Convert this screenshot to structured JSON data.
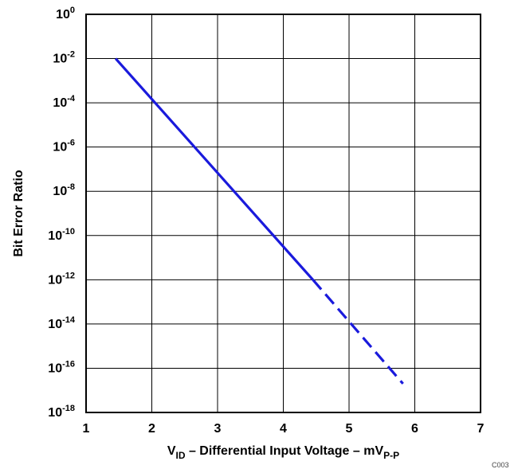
{
  "chart_data": {
    "type": "line",
    "scale": {
      "x": "linear",
      "y": "log10"
    },
    "xlim": [
      1,
      7
    ],
    "ylim": [
      1e-18,
      1
    ],
    "grid": true,
    "x_ticks": [
      "1",
      "2",
      "3",
      "4",
      "5",
      "6",
      "7"
    ],
    "y_ticks": [
      {
        "base": "10",
        "exp": "0"
      },
      {
        "base": "10",
        "exp": "-2"
      },
      {
        "base": "10",
        "exp": "-4"
      },
      {
        "base": "10",
        "exp": "-6"
      },
      {
        "base": "10",
        "exp": "-8"
      },
      {
        "base": "10",
        "exp": "-10"
      },
      {
        "base": "10",
        "exp": "-12"
      },
      {
        "base": "10",
        "exp": "-14"
      },
      {
        "base": "10",
        "exp": "-16"
      },
      {
        "base": "10",
        "exp": "-18"
      }
    ],
    "xlabel": {
      "prefix": "V",
      "sub1": "ID",
      "middle": " – Differential Input Voltage – mV",
      "sub2": "P-P"
    },
    "ylabel": "Bit Error Ratio",
    "code": "C003",
    "line_color": "#1a1adc",
    "series": [
      {
        "style": "solid",
        "points": [
          {
            "x": 1.45,
            "y": 0.01
          },
          {
            "x": 4.45,
            "y": 1e-12
          }
        ]
      },
      {
        "style": "dashed",
        "points": [
          {
            "x": 4.45,
            "y": 1e-12
          },
          {
            "x": 5.82,
            "y": 2e-17
          }
        ]
      }
    ]
  }
}
